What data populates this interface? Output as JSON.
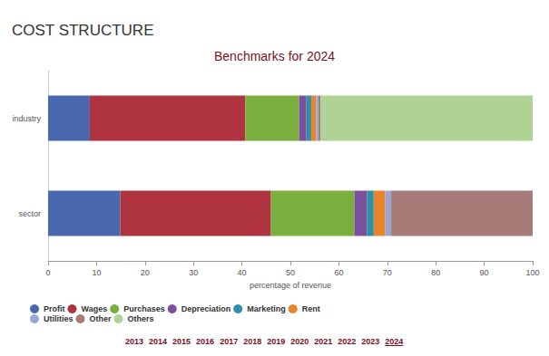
{
  "header": "COST STRUCTURE",
  "chart_data": {
    "type": "bar",
    "title": "Benchmarks for 2024",
    "orientation": "horizontal",
    "stacked": true,
    "grid": false,
    "data_labels": false,
    "categories": [
      "industry",
      "sector"
    ],
    "x_label": "percentage of revenue",
    "xlim": [
      0,
      100
    ],
    "xticks": [
      0,
      10,
      20,
      30,
      40,
      50,
      60,
      70,
      80,
      90,
      100
    ],
    "series": [
      {
        "name": "Profit",
        "color": "#4a68b0",
        "values": [
          8.6,
          14.9
        ]
      },
      {
        "name": "Wages",
        "color": "#b0343f",
        "values": [
          32.1,
          31.1
        ]
      },
      {
        "name": "Purchases",
        "color": "#7aae3f",
        "values": [
          11.1,
          17.2
        ]
      },
      {
        "name": "Depreciation",
        "color": "#7b4f9e",
        "values": [
          1.5,
          2.6
        ]
      },
      {
        "name": "Marketing",
        "color": "#2e8fa8",
        "values": [
          1.0,
          1.4
        ]
      },
      {
        "name": "Rent",
        "color": "#e8842a",
        "values": [
          1.0,
          2.4
        ]
      },
      {
        "name": "Utilities",
        "color": "#9ba6d6",
        "values": [
          0.5,
          1.2
        ]
      },
      {
        "name": "Other",
        "color": "#a67b78",
        "values": [
          0.4,
          29.2
        ]
      },
      {
        "name": "Others",
        "color": "#aed394",
        "values": [
          43.8,
          null
        ]
      }
    ]
  },
  "year_selector": {
    "years": [
      "2013",
      "2014",
      "2015",
      "2016",
      "2017",
      "2018",
      "2019",
      "2020",
      "2021",
      "2022",
      "2023",
      "2024"
    ],
    "selected": "2024"
  }
}
